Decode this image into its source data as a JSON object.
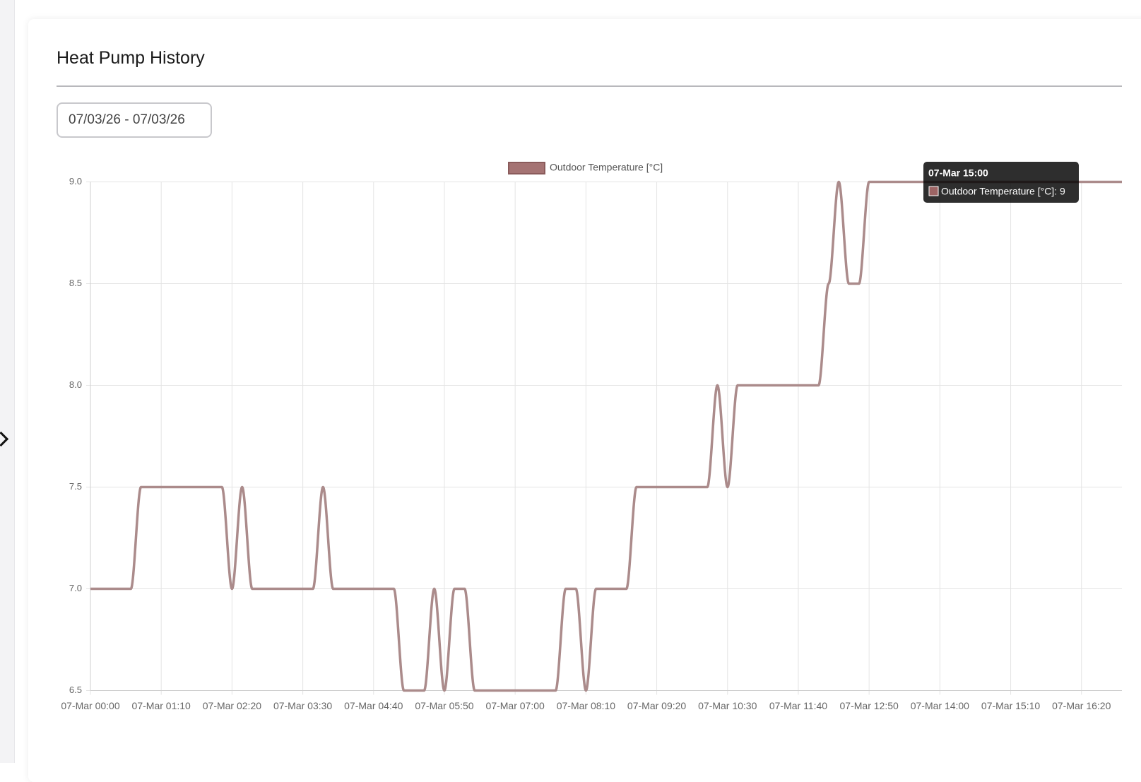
{
  "header": {
    "title": "Heat Pump History"
  },
  "date_range": "07/03/26 - 07/03/26",
  "tooltip": {
    "title": "07-Mar 15:00",
    "label": "Outdoor Temperature [°C]: 9"
  },
  "chart_data": {
    "type": "line",
    "categories": [
      "07-Mar 00:00",
      null,
      null,
      null,
      null,
      null,
      null,
      "07-Mar 01:10",
      null,
      null,
      null,
      null,
      null,
      null,
      "07-Mar 02:20",
      null,
      null,
      null,
      null,
      null,
      null,
      "07-Mar 03:30",
      null,
      null,
      null,
      null,
      null,
      null,
      "07-Mar 04:40",
      null,
      null,
      null,
      null,
      null,
      null,
      "07-Mar 05:50",
      null,
      null,
      null,
      null,
      null,
      null,
      "07-Mar 07:00",
      null,
      null,
      null,
      null,
      null,
      null,
      "07-Mar 08:10",
      null,
      null,
      null,
      null,
      null,
      null,
      "07-Mar 09:20",
      null,
      null,
      null,
      null,
      null,
      null,
      "07-Mar 10:30",
      null,
      null,
      null,
      null,
      null,
      null,
      "07-Mar 11:40",
      null,
      null,
      null,
      null,
      null,
      null,
      "07-Mar 12:50",
      null,
      null,
      null,
      null,
      null,
      null,
      "07-Mar 14:00",
      null,
      null,
      null,
      null,
      null,
      null,
      "07-Mar 15:10",
      null,
      null,
      null,
      null,
      null,
      null,
      "07-Mar 16:20",
      null,
      null,
      null,
      null
    ],
    "series": [
      {
        "name": "Outdoor Temperature [°C]",
        "color": "#ab8b8b",
        "values": [
          7,
          7,
          7,
          7,
          7,
          7.5,
          7.5,
          7.5,
          7.5,
          7.5,
          7.5,
          7.5,
          7.5,
          7.5,
          7,
          7.5,
          7,
          7,
          7,
          7,
          7,
          7,
          7,
          7.5,
          7,
          7,
          7,
          7,
          7,
          7,
          7,
          6.5,
          6.5,
          6.5,
          7,
          6.5,
          7,
          7,
          6.5,
          6.5,
          6.5,
          6.5,
          6.5,
          6.5,
          6.5,
          6.5,
          6.5,
          7,
          7,
          6.5,
          7,
          7,
          7,
          7,
          7.5,
          7.5,
          7.5,
          7.5,
          7.5,
          7.5,
          7.5,
          7.5,
          8,
          7.5,
          8,
          8,
          8,
          8,
          8,
          8,
          8,
          8,
          8,
          8.5,
          9,
          8.5,
          8.5,
          9,
          9,
          9,
          9,
          9,
          9,
          9,
          9,
          9,
          9,
          9,
          9,
          9,
          9,
          9,
          9,
          9,
          9,
          9,
          9,
          9,
          9,
          9,
          9,
          9,
          9
        ]
      }
    ],
    "ylim": [
      6.5,
      9
    ],
    "yticks": [
      6.5,
      {
        "value": 7,
        "label": "7.0"
      },
      7.5,
      {
        "value": 8,
        "label": "8.0"
      },
      8.5,
      {
        "value": 9,
        "label": "9.0"
      }
    ],
    "grid": true,
    "legend": "top"
  }
}
